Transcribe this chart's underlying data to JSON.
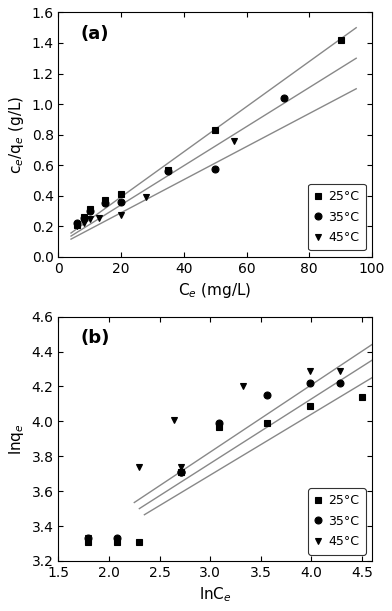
{
  "panel_a": {
    "title": "(a)",
    "xlabel": "C$_e$ (mg/L)",
    "ylabel": "c$_e$/q$_e$ (g/L)",
    "xlim": [
      0,
      100
    ],
    "ylim": [
      0.0,
      1.6
    ],
    "xticks": [
      0,
      20,
      40,
      60,
      80,
      100
    ],
    "yticks": [
      0.0,
      0.2,
      0.4,
      0.6,
      0.8,
      1.0,
      1.2,
      1.4,
      1.6
    ],
    "series": [
      {
        "label": "25°C",
        "marker": "s",
        "x": [
          6,
          8,
          10,
          15,
          20,
          35,
          50,
          90
        ],
        "y": [
          0.21,
          0.26,
          0.315,
          0.37,
          0.41,
          0.57,
          0.83,
          1.42
        ],
        "fit_x": [
          4,
          95
        ],
        "fit_y": [
          0.155,
          1.5
        ]
      },
      {
        "label": "35°C",
        "marker": "o",
        "x": [
          6,
          8,
          10,
          15,
          20,
          35,
          50,
          72
        ],
        "y": [
          0.22,
          0.255,
          0.3,
          0.35,
          0.355,
          0.56,
          0.575,
          1.04
        ],
        "fit_x": [
          4,
          95
        ],
        "fit_y": [
          0.135,
          1.3
        ]
      },
      {
        "label": "45°C",
        "marker": "v",
        "x": [
          6,
          8,
          10,
          13,
          20,
          28,
          56
        ],
        "y": [
          0.2,
          0.22,
          0.245,
          0.255,
          0.27,
          0.39,
          0.76
        ],
        "fit_x": [
          4,
          95
        ],
        "fit_y": [
          0.115,
          1.1
        ]
      }
    ]
  },
  "panel_b": {
    "title": "(b)",
    "xlabel": "lnC$_e$",
    "ylabel": "lnq$_e$",
    "xlim": [
      1.5,
      4.6
    ],
    "ylim": [
      3.2,
      4.6
    ],
    "xticks": [
      1.5,
      2.0,
      2.5,
      3.0,
      3.5,
      4.0,
      4.5
    ],
    "yticks": [
      3.2,
      3.4,
      3.6,
      3.8,
      4.0,
      4.2,
      4.4,
      4.6
    ],
    "series": [
      {
        "label": "25°C",
        "marker": "s",
        "x": [
          1.79,
          2.08,
          2.3,
          2.71,
          3.09,
          3.56,
          3.99,
          4.5
        ],
        "y": [
          3.31,
          3.31,
          3.31,
          3.71,
          3.97,
          3.99,
          4.09,
          4.14
        ],
        "fit_x": [
          2.35,
          4.6
        ],
        "fit_y": [
          3.465,
          4.25
        ]
      },
      {
        "label": "35°C",
        "marker": "o",
        "x": [
          1.79,
          2.08,
          2.71,
          2.71,
          3.09,
          3.56,
          3.99,
          4.28
        ],
        "y": [
          3.33,
          3.33,
          3.71,
          3.71,
          3.99,
          4.15,
          4.22,
          4.22
        ],
        "fit_x": [
          2.3,
          4.6
        ],
        "fit_y": [
          3.5,
          4.35
        ]
      },
      {
        "label": "45°C",
        "marker": "v",
        "x": [
          1.79,
          2.3,
          2.64,
          2.71,
          3.33,
          3.99,
          4.28
        ],
        "y": [
          3.33,
          3.74,
          4.01,
          3.74,
          4.2,
          4.29,
          4.29
        ],
        "fit_x": [
          2.25,
          4.6
        ],
        "fit_y": [
          3.535,
          4.44
        ]
      }
    ]
  },
  "marker_size": 5,
  "line_color": "#888888",
  "marker_color": "black",
  "marker_edge_color": "black",
  "font_size": 10,
  "label_fontsize": 11,
  "legend_fontsize": 9,
  "tick_label_size": 10
}
